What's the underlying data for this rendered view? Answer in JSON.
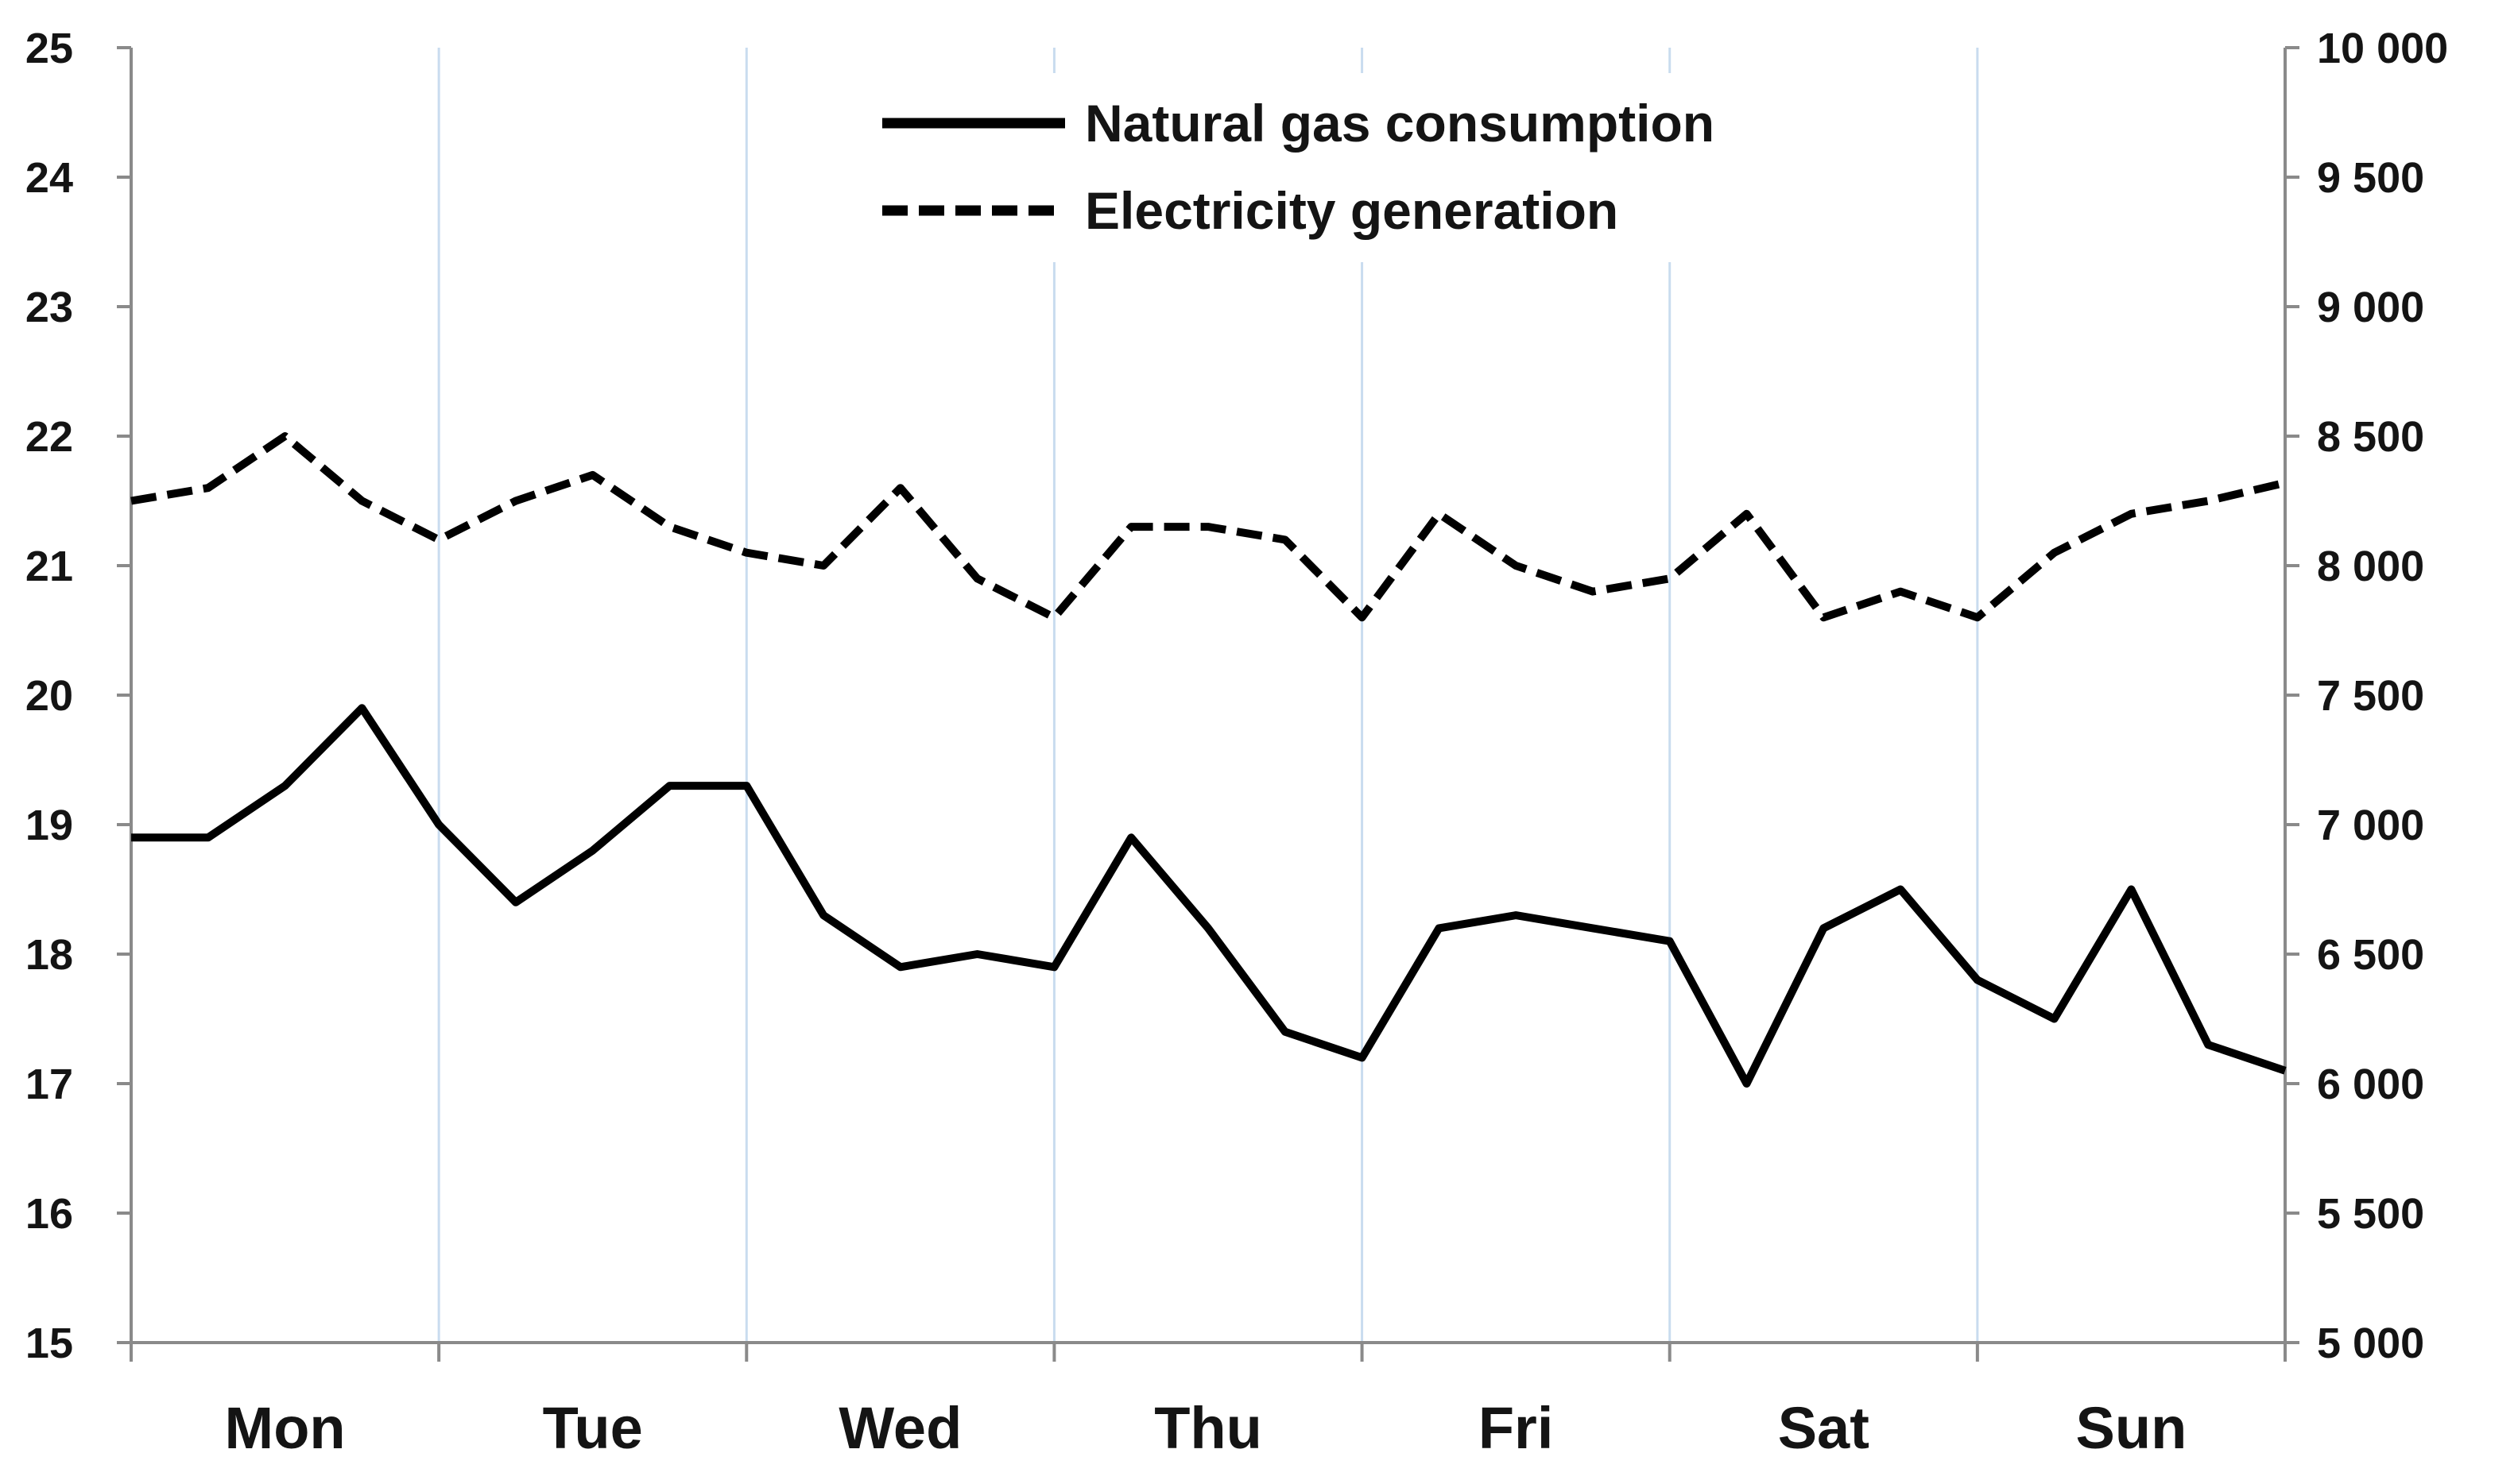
{
  "chart_data": {
    "type": "line",
    "title": "",
    "x": [
      0,
      0.25,
      0.5,
      0.75,
      1,
      1.25,
      1.5,
      1.75,
      2,
      2.25,
      2.5,
      2.75,
      3,
      3.25,
      3.5,
      3.75,
      4,
      4.25,
      4.5,
      4.75,
      5,
      5.25,
      5.5,
      5.75,
      6,
      6.25,
      6.5,
      6.75,
      7
    ],
    "x_tick_labels": [
      "Mon",
      "Tue",
      "Wed",
      "Thu",
      "Fri",
      "Sat",
      "Sun"
    ],
    "xlim": [
      0,
      7
    ],
    "y_left": {
      "label": "",
      "lim": [
        15,
        25
      ],
      "ticks": [
        "15",
        "16",
        "17",
        "18",
        "19",
        "20",
        "21",
        "22",
        "23",
        "24",
        "25"
      ]
    },
    "y_right": {
      "label": "",
      "lim": [
        5000,
        10000
      ],
      "ticks": [
        "5 000",
        "5 500",
        "6 000",
        "6 500",
        "7 000",
        "7 500",
        "8 000",
        "8 500",
        "9 000",
        "9 500",
        "10 000"
      ]
    },
    "grid": "vertical",
    "series": [
      {
        "name": "Natural gas consumption",
        "axis": "left",
        "style": "solid",
        "color": "#000000",
        "values": [
          18.9,
          18.9,
          19.3,
          19.9,
          19.0,
          18.4,
          18.8,
          19.3,
          19.3,
          18.3,
          17.9,
          18.0,
          17.9,
          18.9,
          18.2,
          17.4,
          17.2,
          18.2,
          18.3,
          18.2,
          18.1,
          17.0,
          18.2,
          18.5,
          17.8,
          17.5,
          18.5,
          17.3,
          17.1
        ]
      },
      {
        "name": "Electricity generation",
        "axis": "right",
        "style": "dashed",
        "color": "#000000",
        "values": [
          8250,
          8300,
          8500,
          8250,
          8100,
          8250,
          8350,
          8150,
          8050,
          8000,
          8300,
          7950,
          7800,
          8150,
          8150,
          8100,
          7800,
          8200,
          8000,
          7900,
          7950,
          8200,
          7800,
          7900,
          7800,
          8050,
          8200,
          8250,
          8320
        ]
      }
    ],
    "legend": {
      "position": "top-center",
      "entries": [
        "Natural gas consumption",
        "Electricity generation"
      ]
    }
  }
}
